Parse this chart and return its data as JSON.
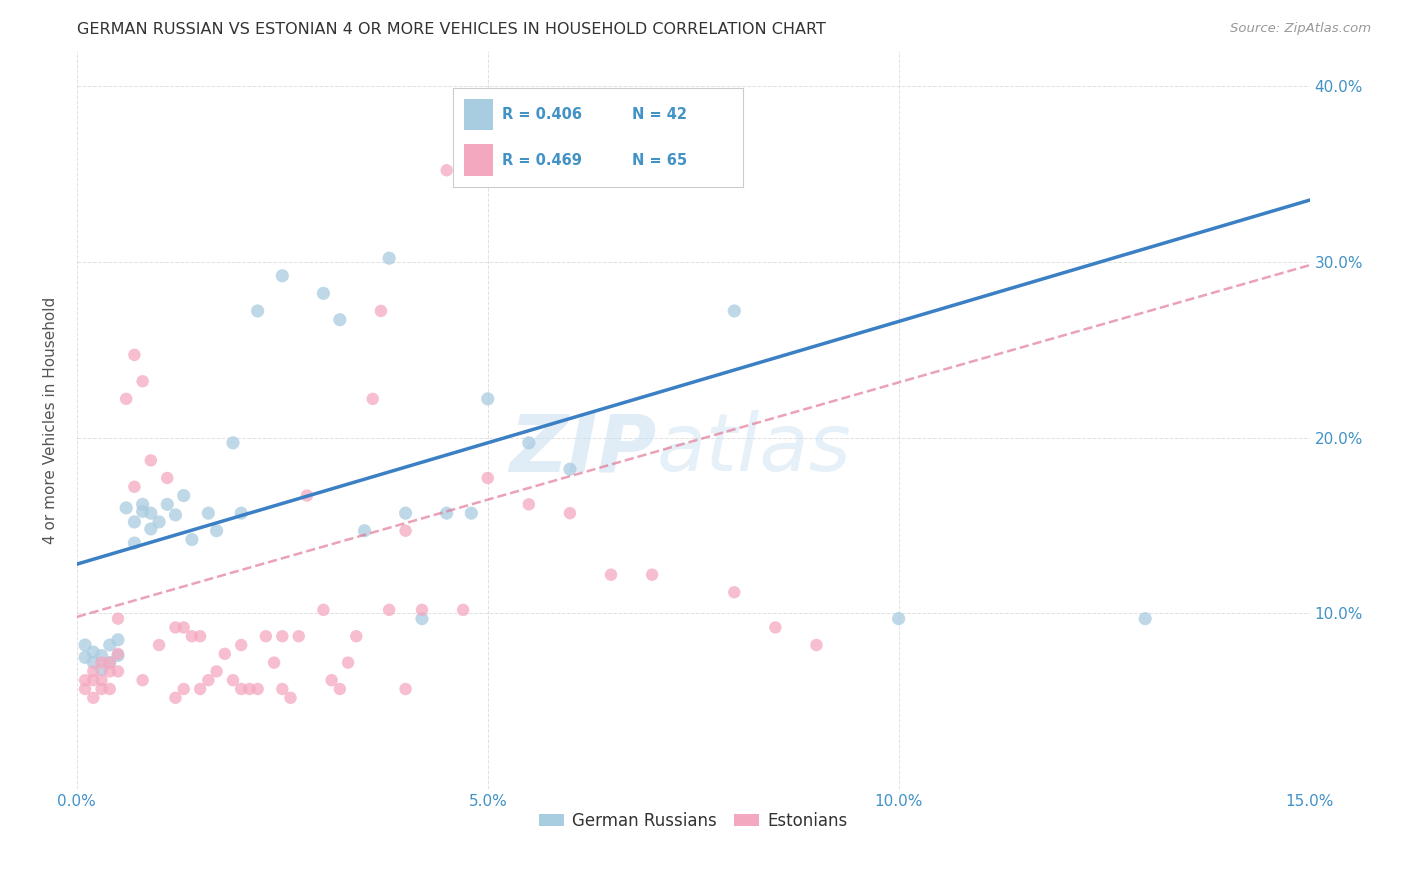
{
  "title": "GERMAN RUSSIAN VS ESTONIAN 4 OR MORE VEHICLES IN HOUSEHOLD CORRELATION CHART",
  "source": "Source: ZipAtlas.com",
  "ylabel": "4 or more Vehicles in Household",
  "xmin": 0.0,
  "xmax": 0.15,
  "ymin": 0.0,
  "ymax": 0.42,
  "x_ticks": [
    0.0,
    0.05,
    0.1,
    0.15
  ],
  "x_tick_labels": [
    "0.0%",
    "5.0%",
    "10.0%",
    "15.0%"
  ],
  "y_ticks": [
    0.0,
    0.1,
    0.2,
    0.3,
    0.4
  ],
  "y_tick_labels": [
    "",
    "10.0%",
    "20.0%",
    "30.0%",
    "40.0%"
  ],
  "watermark_zip": "ZIP",
  "watermark_atlas": "atlas",
  "legend_R_blue": "R = 0.406",
  "legend_N_blue": "N = 42",
  "legend_R_pink": "R = 0.469",
  "legend_N_pink": "N = 65",
  "blue_color": "#a8cce0",
  "pink_color": "#f4a8c0",
  "line_blue_color": "#3b7fc4",
  "line_pink_color": "#e07090",
  "blue_scatter": [
    [
      0.001,
      0.075
    ],
    [
      0.001,
      0.082
    ],
    [
      0.002,
      0.078
    ],
    [
      0.002,
      0.072
    ],
    [
      0.003,
      0.076
    ],
    [
      0.003,
      0.068
    ],
    [
      0.004,
      0.082
    ],
    [
      0.004,
      0.072
    ],
    [
      0.005,
      0.085
    ],
    [
      0.005,
      0.076
    ],
    [
      0.006,
      0.16
    ],
    [
      0.007,
      0.14
    ],
    [
      0.007,
      0.152
    ],
    [
      0.008,
      0.158
    ],
    [
      0.008,
      0.162
    ],
    [
      0.009,
      0.148
    ],
    [
      0.009,
      0.157
    ],
    [
      0.01,
      0.152
    ],
    [
      0.011,
      0.162
    ],
    [
      0.012,
      0.156
    ],
    [
      0.013,
      0.167
    ],
    [
      0.014,
      0.142
    ],
    [
      0.016,
      0.157
    ],
    [
      0.017,
      0.147
    ],
    [
      0.019,
      0.197
    ],
    [
      0.02,
      0.157
    ],
    [
      0.022,
      0.272
    ],
    [
      0.025,
      0.292
    ],
    [
      0.03,
      0.282
    ],
    [
      0.032,
      0.267
    ],
    [
      0.035,
      0.147
    ],
    [
      0.038,
      0.302
    ],
    [
      0.04,
      0.157
    ],
    [
      0.042,
      0.097
    ],
    [
      0.045,
      0.157
    ],
    [
      0.048,
      0.157
    ],
    [
      0.05,
      0.222
    ],
    [
      0.055,
      0.197
    ],
    [
      0.06,
      0.182
    ],
    [
      0.08,
      0.272
    ],
    [
      0.1,
      0.097
    ],
    [
      0.13,
      0.097
    ]
  ],
  "pink_scatter": [
    [
      0.001,
      0.062
    ],
    [
      0.001,
      0.057
    ],
    [
      0.002,
      0.067
    ],
    [
      0.002,
      0.062
    ],
    [
      0.002,
      0.052
    ],
    [
      0.003,
      0.072
    ],
    [
      0.003,
      0.062
    ],
    [
      0.003,
      0.057
    ],
    [
      0.004,
      0.072
    ],
    [
      0.004,
      0.067
    ],
    [
      0.004,
      0.057
    ],
    [
      0.005,
      0.077
    ],
    [
      0.005,
      0.067
    ],
    [
      0.005,
      0.097
    ],
    [
      0.006,
      0.222
    ],
    [
      0.007,
      0.247
    ],
    [
      0.007,
      0.172
    ],
    [
      0.008,
      0.232
    ],
    [
      0.008,
      0.062
    ],
    [
      0.009,
      0.187
    ],
    [
      0.01,
      0.082
    ],
    [
      0.011,
      0.177
    ],
    [
      0.012,
      0.092
    ],
    [
      0.012,
      0.052
    ],
    [
      0.013,
      0.092
    ],
    [
      0.013,
      0.057
    ],
    [
      0.014,
      0.087
    ],
    [
      0.015,
      0.087
    ],
    [
      0.015,
      0.057
    ],
    [
      0.016,
      0.062
    ],
    [
      0.017,
      0.067
    ],
    [
      0.018,
      0.077
    ],
    [
      0.019,
      0.062
    ],
    [
      0.02,
      0.057
    ],
    [
      0.02,
      0.082
    ],
    [
      0.021,
      0.057
    ],
    [
      0.022,
      0.057
    ],
    [
      0.023,
      0.087
    ],
    [
      0.024,
      0.072
    ],
    [
      0.025,
      0.057
    ],
    [
      0.025,
      0.087
    ],
    [
      0.026,
      0.052
    ],
    [
      0.027,
      0.087
    ],
    [
      0.028,
      0.167
    ],
    [
      0.03,
      0.102
    ],
    [
      0.031,
      0.062
    ],
    [
      0.032,
      0.057
    ],
    [
      0.033,
      0.072
    ],
    [
      0.034,
      0.087
    ],
    [
      0.036,
      0.222
    ],
    [
      0.037,
      0.272
    ],
    [
      0.038,
      0.102
    ],
    [
      0.04,
      0.147
    ],
    [
      0.04,
      0.057
    ],
    [
      0.042,
      0.102
    ],
    [
      0.045,
      0.352
    ],
    [
      0.047,
      0.102
    ],
    [
      0.05,
      0.177
    ],
    [
      0.055,
      0.162
    ],
    [
      0.06,
      0.157
    ],
    [
      0.065,
      0.122
    ],
    [
      0.07,
      0.122
    ],
    [
      0.08,
      0.112
    ],
    [
      0.085,
      0.092
    ],
    [
      0.09,
      0.082
    ]
  ],
  "blue_line_x": [
    0.0,
    0.15
  ],
  "blue_line_y": [
    0.128,
    0.335
  ],
  "pink_line_x": [
    0.0,
    0.15
  ],
  "pink_line_y": [
    0.098,
    0.298
  ],
  "background_color": "#ffffff",
  "grid_color": "#cccccc",
  "title_color": "#333333",
  "axis_tick_color": "#4292c6",
  "legend_label_color": "#333333"
}
